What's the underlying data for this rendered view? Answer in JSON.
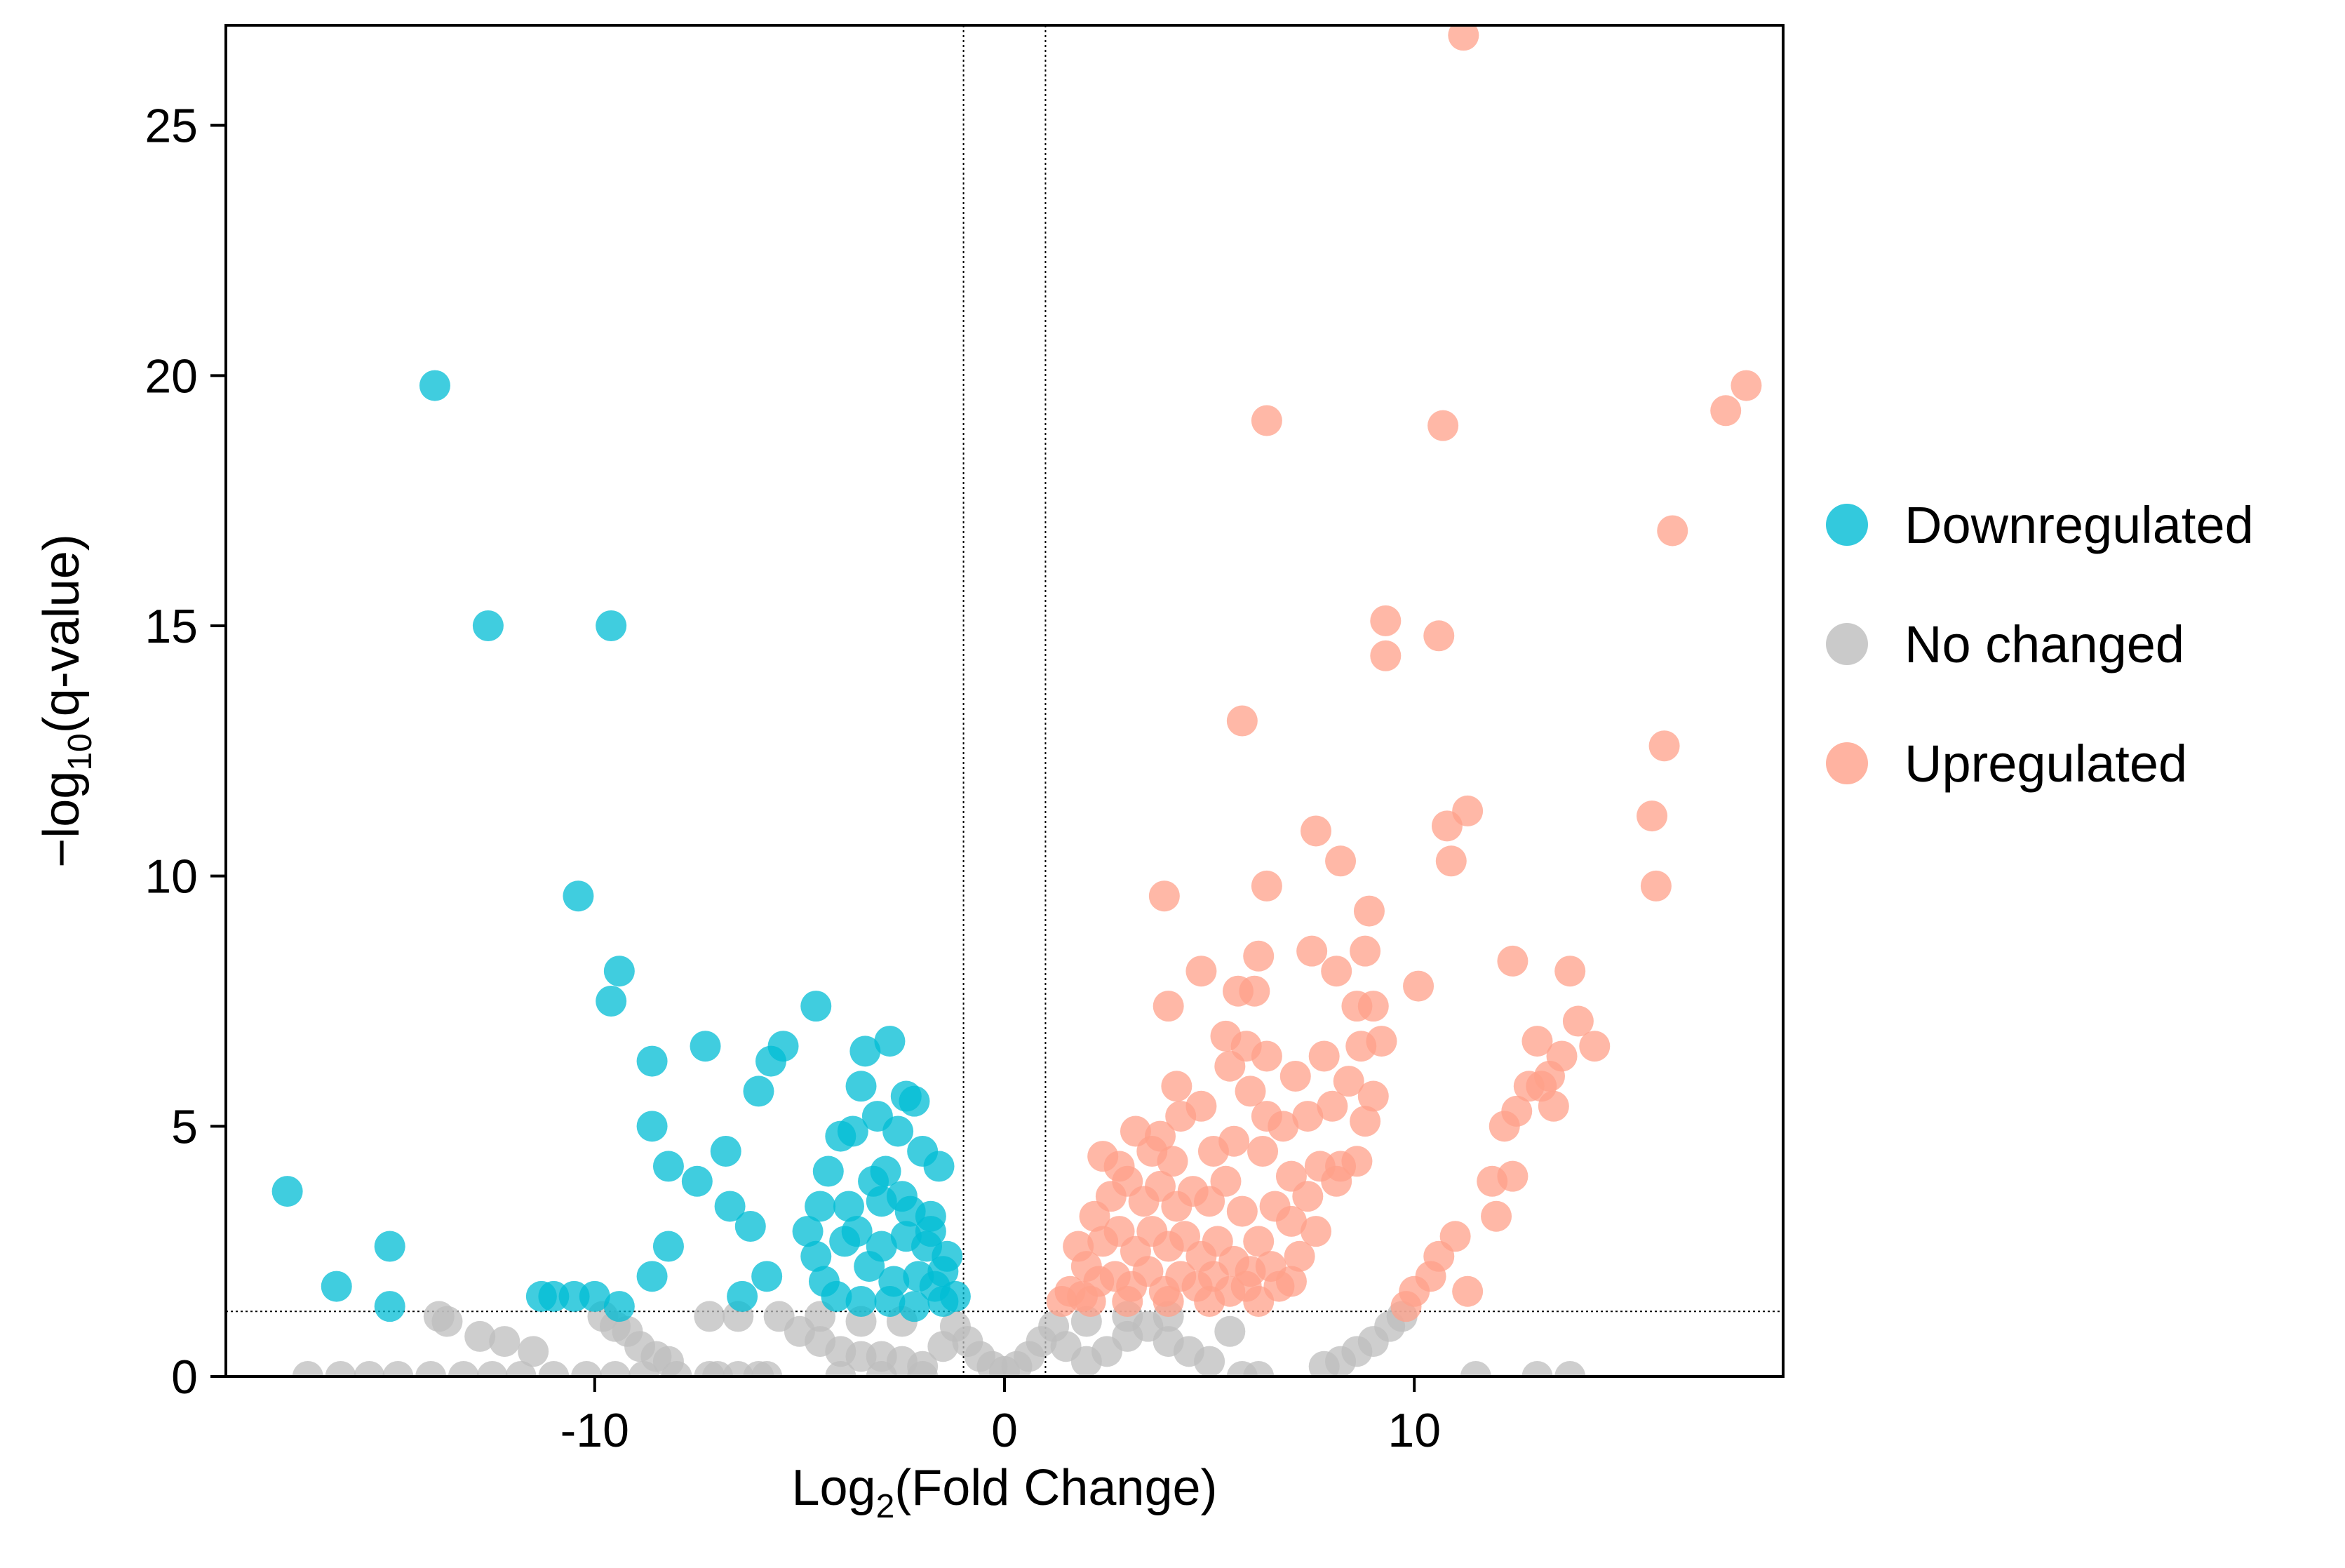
{
  "chart_data": {
    "type": "scatter",
    "title": "",
    "xlabel": {
      "prefix": "Log",
      "sub": "2",
      "suffix": "(Fold Change)"
    },
    "ylabel": {
      "prefix": "−log",
      "sub": "10",
      "suffix": "(q-value)"
    },
    "xlim": [
      -19,
      19
    ],
    "ylim": [
      0,
      27
    ],
    "xticks": [
      -10,
      0,
      10
    ],
    "yticks": [
      0,
      5,
      10,
      15,
      20,
      25
    ],
    "grid": false,
    "thresholds": {
      "fold_change_lines": [
        -1,
        1
      ],
      "q_value_line": 1.3
    },
    "legend_position": "right",
    "colors": {
      "Downregulated": "#00bcd4",
      "No changed": "#bdbdbd",
      "Upregulated": "#ffa08a"
    },
    "series": [
      {
        "name": "Downregulated",
        "points": [
          [
            -17.5,
            3.7
          ],
          [
            -16.3,
            1.8
          ],
          [
            -15.0,
            2.6
          ],
          [
            -15.0,
            1.4
          ],
          [
            -13.9,
            19.8
          ],
          [
            -12.6,
            15.0
          ],
          [
            -10.4,
            9.6
          ],
          [
            -9.6,
            15.0
          ],
          [
            -9.4,
            8.1
          ],
          [
            -9.6,
            7.5
          ],
          [
            -8.6,
            6.3
          ],
          [
            -8.6,
            5.0
          ],
          [
            -8.2,
            4.2
          ],
          [
            -7.5,
            3.9
          ],
          [
            -7.3,
            6.6
          ],
          [
            -6.8,
            4.5
          ],
          [
            -6.7,
            3.4
          ],
          [
            -6.2,
            3.0
          ],
          [
            -6.0,
            5.7
          ],
          [
            -5.7,
            6.3
          ],
          [
            -5.4,
            6.6
          ],
          [
            -4.6,
            7.4
          ],
          [
            -4.3,
            4.1
          ],
          [
            -4.0,
            4.8
          ],
          [
            -3.7,
            4.9
          ],
          [
            -3.5,
            5.8
          ],
          [
            -3.4,
            6.5
          ],
          [
            -3.1,
            5.2
          ],
          [
            -2.8,
            6.7
          ],
          [
            -2.6,
            4.9
          ],
          [
            -2.4,
            5.6
          ],
          [
            -2.2,
            5.5
          ],
          [
            -2.0,
            4.5
          ],
          [
            -1.8,
            3.2
          ],
          [
            -1.6,
            4.2
          ],
          [
            -1.4,
            2.4
          ],
          [
            -1.2,
            1.6
          ],
          [
            -3.8,
            3.4
          ],
          [
            -3.2,
            3.9
          ],
          [
            -2.9,
            4.1
          ],
          [
            -2.5,
            3.6
          ],
          [
            -4.8,
            2.9
          ],
          [
            -4.6,
            2.4
          ],
          [
            -4.4,
            1.9
          ],
          [
            -4.1,
            1.6
          ],
          [
            -3.9,
            2.7
          ],
          [
            -3.6,
            2.9
          ],
          [
            -3.3,
            2.2
          ],
          [
            -3.0,
            2.6
          ],
          [
            -2.7,
            1.9
          ],
          [
            -2.4,
            2.8
          ],
          [
            -2.1,
            2.0
          ],
          [
            -1.9,
            2.6
          ],
          [
            -1.7,
            1.8
          ],
          [
            -1.5,
            1.5
          ],
          [
            -3.5,
            1.5
          ],
          [
            -2.8,
            1.5
          ],
          [
            -2.2,
            1.4
          ],
          [
            -5.8,
            2.0
          ],
          [
            -6.4,
            1.6
          ],
          [
            -8.6,
            2.0
          ],
          [
            -8.2,
            2.6
          ],
          [
            -10.0,
            1.6
          ],
          [
            -10.5,
            1.6
          ],
          [
            -11.0,
            1.6
          ],
          [
            -11.3,
            1.6
          ],
          [
            -9.4,
            1.4
          ],
          [
            -4.5,
            3.4
          ],
          [
            -3.0,
            3.5
          ],
          [
            -2.3,
            3.3
          ],
          [
            -1.8,
            2.9
          ],
          [
            -1.5,
            2.1
          ]
        ]
      },
      {
        "name": "No changed",
        "points": [
          [
            -17.0,
            0.0
          ],
          [
            -16.2,
            0.0
          ],
          [
            -15.5,
            0.0
          ],
          [
            -14.8,
            0.0
          ],
          [
            -14.0,
            0.0
          ],
          [
            -13.2,
            0.0
          ],
          [
            -12.5,
            0.0
          ],
          [
            -11.8,
            0.0
          ],
          [
            -11.0,
            0.0
          ],
          [
            -10.2,
            0.0
          ],
          [
            -9.5,
            0.0
          ],
          [
            -8.8,
            0.0
          ],
          [
            -8.0,
            0.0
          ],
          [
            -7.2,
            0.0
          ],
          [
            -6.5,
            0.0
          ],
          [
            -5.8,
            0.0
          ],
          [
            -13.8,
            1.2
          ],
          [
            -13.6,
            1.1
          ],
          [
            -12.8,
            0.8
          ],
          [
            -12.2,
            0.7
          ],
          [
            -11.5,
            0.5
          ],
          [
            -9.8,
            1.2
          ],
          [
            -9.5,
            1.0
          ],
          [
            -9.2,
            0.9
          ],
          [
            -8.9,
            0.6
          ],
          [
            -8.5,
            0.4
          ],
          [
            -8.2,
            0.3
          ],
          [
            -7.2,
            1.2
          ],
          [
            -6.5,
            1.2
          ],
          [
            -5.5,
            1.2
          ],
          [
            -5.0,
            0.9
          ],
          [
            -4.5,
            0.7
          ],
          [
            -4.0,
            0.5
          ],
          [
            -3.5,
            0.4
          ],
          [
            -3.0,
            0.4
          ],
          [
            -2.5,
            0.3
          ],
          [
            -2.0,
            0.2
          ],
          [
            -1.5,
            0.6
          ],
          [
            -1.2,
            1.0
          ],
          [
            -0.9,
            0.7
          ],
          [
            -0.6,
            0.4
          ],
          [
            -0.3,
            0.2
          ],
          [
            0.0,
            0.1
          ],
          [
            0.3,
            0.2
          ],
          [
            0.6,
            0.4
          ],
          [
            0.9,
            0.7
          ],
          [
            1.2,
            1.0
          ],
          [
            1.5,
            0.6
          ],
          [
            2.0,
            0.3
          ],
          [
            2.5,
            0.5
          ],
          [
            3.0,
            0.8
          ],
          [
            3.5,
            1.0
          ],
          [
            4.0,
            0.7
          ],
          [
            4.5,
            0.5
          ],
          [
            5.0,
            0.3
          ],
          [
            5.5,
            0.9
          ],
          [
            5.8,
            0.0
          ],
          [
            6.2,
            0.0
          ],
          [
            7.8,
            0.2
          ],
          [
            8.2,
            0.3
          ],
          [
            8.6,
            0.5
          ],
          [
            9.0,
            0.7
          ],
          [
            9.4,
            1.0
          ],
          [
            9.7,
            1.2
          ],
          [
            11.5,
            0.0
          ],
          [
            13.0,
            0.0
          ],
          [
            13.8,
            0.0
          ],
          [
            -7.0,
            0.0
          ],
          [
            -6.0,
            0.0
          ],
          [
            -4.0,
            0.0
          ],
          [
            -3.0,
            0.0
          ],
          [
            -2.0,
            0.0
          ],
          [
            2.0,
            1.1
          ],
          [
            3.0,
            1.2
          ],
          [
            4.0,
            1.2
          ],
          [
            -4.5,
            1.2
          ],
          [
            -3.5,
            1.1
          ],
          [
            -2.5,
            1.1
          ]
        ]
      },
      {
        "name": "Upregulated",
        "points": [
          [
            11.2,
            26.8
          ],
          [
            6.4,
            19.1
          ],
          [
            10.7,
            19.0
          ],
          [
            18.1,
            19.8
          ],
          [
            17.6,
            19.3
          ],
          [
            16.3,
            16.9
          ],
          [
            9.3,
            15.1
          ],
          [
            9.3,
            14.4
          ],
          [
            10.6,
            14.8
          ],
          [
            5.8,
            13.1
          ],
          [
            16.1,
            12.6
          ],
          [
            7.6,
            10.9
          ],
          [
            10.8,
            11.0
          ],
          [
            11.3,
            11.3
          ],
          [
            15.8,
            11.2
          ],
          [
            10.9,
            10.3
          ],
          [
            8.2,
            10.3
          ],
          [
            6.4,
            9.8
          ],
          [
            15.9,
            9.8
          ],
          [
            3.9,
            9.6
          ],
          [
            8.9,
            9.3
          ],
          [
            12.4,
            8.3
          ],
          [
            13.8,
            8.1
          ],
          [
            7.5,
            8.5
          ],
          [
            8.8,
            8.5
          ],
          [
            6.2,
            8.4
          ],
          [
            4.8,
            8.1
          ],
          [
            5.7,
            7.7
          ],
          [
            6.1,
            7.7
          ],
          [
            8.1,
            8.1
          ],
          [
            10.1,
            7.8
          ],
          [
            8.6,
            7.4
          ],
          [
            9.0,
            7.4
          ],
          [
            14.0,
            7.1
          ],
          [
            4.0,
            7.4
          ],
          [
            5.4,
            6.8
          ],
          [
            5.9,
            6.6
          ],
          [
            6.4,
            6.4
          ],
          [
            7.1,
            6.0
          ],
          [
            7.8,
            6.4
          ],
          [
            8.7,
            6.6
          ],
          [
            9.2,
            6.7
          ],
          [
            13.0,
            6.7
          ],
          [
            13.6,
            6.4
          ],
          [
            14.4,
            6.6
          ],
          [
            13.3,
            6.0
          ],
          [
            12.8,
            5.8
          ],
          [
            12.5,
            5.3
          ],
          [
            12.2,
            5.0
          ],
          [
            13.1,
            5.8
          ],
          [
            13.4,
            5.4
          ],
          [
            5.5,
            6.2
          ],
          [
            4.2,
            5.8
          ],
          [
            4.8,
            5.4
          ],
          [
            3.2,
            4.9
          ],
          [
            3.8,
            4.8
          ],
          [
            4.3,
            5.2
          ],
          [
            6.0,
            5.7
          ],
          [
            6.4,
            5.2
          ],
          [
            6.8,
            5.0
          ],
          [
            7.4,
            5.2
          ],
          [
            8.0,
            5.4
          ],
          [
            8.4,
            5.9
          ],
          [
            8.8,
            5.1
          ],
          [
            9.0,
            5.6
          ],
          [
            2.4,
            4.4
          ],
          [
            2.8,
            4.2
          ],
          [
            3.6,
            4.5
          ],
          [
            4.1,
            4.3
          ],
          [
            5.1,
            4.5
          ],
          [
            5.6,
            4.7
          ],
          [
            6.3,
            4.5
          ],
          [
            7.0,
            4.0
          ],
          [
            7.7,
            4.2
          ],
          [
            8.2,
            4.2
          ],
          [
            8.6,
            4.3
          ],
          [
            8.1,
            3.9
          ],
          [
            7.4,
            3.6
          ],
          [
            11.9,
            3.9
          ],
          [
            12.4,
            4.0
          ],
          [
            12.0,
            3.2
          ],
          [
            11.0,
            2.8
          ],
          [
            10.6,
            2.4
          ],
          [
            10.4,
            2.0
          ],
          [
            10.0,
            1.7
          ],
          [
            9.8,
            1.4
          ],
          [
            11.3,
            1.7
          ],
          [
            2.2,
            3.2
          ],
          [
            2.6,
            3.6
          ],
          [
            3.0,
            3.9
          ],
          [
            3.4,
            3.5
          ],
          [
            3.8,
            3.8
          ],
          [
            4.2,
            3.4
          ],
          [
            4.6,
            3.7
          ],
          [
            5.0,
            3.5
          ],
          [
            5.4,
            3.9
          ],
          [
            5.8,
            3.3
          ],
          [
            6.6,
            3.4
          ],
          [
            7.0,
            3.1
          ],
          [
            7.6,
            2.9
          ],
          [
            6.2,
            2.7
          ],
          [
            1.8,
            2.6
          ],
          [
            2.0,
            2.2
          ],
          [
            2.4,
            2.7
          ],
          [
            2.8,
            2.9
          ],
          [
            3.2,
            2.5
          ],
          [
            3.6,
            2.9
          ],
          [
            4.0,
            2.6
          ],
          [
            4.4,
            2.8
          ],
          [
            4.8,
            2.4
          ],
          [
            5.2,
            2.7
          ],
          [
            5.6,
            2.3
          ],
          [
            6.0,
            2.1
          ],
          [
            6.5,
            2.2
          ],
          [
            7.2,
            2.4
          ],
          [
            7.0,
            1.9
          ],
          [
            6.7,
            1.8
          ],
          [
            1.6,
            1.7
          ],
          [
            1.9,
            1.6
          ],
          [
            2.3,
            1.9
          ],
          [
            2.7,
            2.0
          ],
          [
            3.1,
            1.8
          ],
          [
            3.5,
            2.1
          ],
          [
            3.9,
            1.7
          ],
          [
            4.3,
            2.0
          ],
          [
            4.7,
            1.8
          ],
          [
            5.1,
            2.0
          ],
          [
            5.5,
            1.7
          ],
          [
            5.9,
            1.8
          ],
          [
            1.4,
            1.5
          ],
          [
            2.1,
            1.5
          ],
          [
            3.0,
            1.5
          ],
          [
            4.0,
            1.5
          ],
          [
            5.0,
            1.5
          ],
          [
            6.2,
            1.5
          ]
        ]
      }
    ]
  }
}
